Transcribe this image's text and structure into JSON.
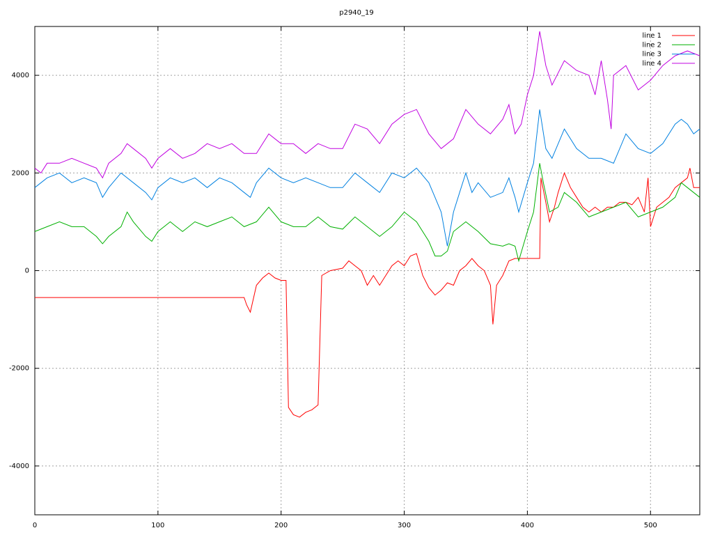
{
  "chart_data": {
    "type": "line",
    "title": "p2940_19",
    "xlim": [
      0,
      540
    ],
    "ylim": [
      -5000,
      5000
    ],
    "xticks": [
      0,
      100,
      200,
      300,
      400,
      500
    ],
    "yticks": [
      -4000,
      -2000,
      0,
      2000,
      4000
    ],
    "grid": true,
    "legend": "upper right",
    "series": [
      {
        "name": "line 1",
        "color": "#ff0000",
        "x": [
          0,
          170,
          172,
          175,
          180,
          185,
          190,
          195,
          200,
          204,
          206,
          210,
          215,
          220,
          225,
          230,
          233,
          240,
          250,
          255,
          260,
          265,
          270,
          275,
          280,
          285,
          290,
          295,
          300,
          305,
          310,
          315,
          320,
          325,
          330,
          335,
          340,
          345,
          350,
          355,
          360,
          365,
          370,
          372,
          375,
          380,
          385,
          390,
          400,
          410,
          411,
          415,
          418,
          422,
          425,
          430,
          435,
          440,
          445,
          450,
          455,
          460,
          465,
          470,
          475,
          480,
          485,
          490,
          495,
          498,
          500,
          505,
          510,
          515,
          520,
          525,
          530,
          532,
          535,
          540
        ],
        "values": [
          -550,
          -550,
          -700,
          -850,
          -300,
          -150,
          -50,
          -150,
          -200,
          -200,
          -2800,
          -2950,
          -3000,
          -2900,
          -2850,
          -2750,
          -100,
          0,
          50,
          200,
          100,
          0,
          -300,
          -100,
          -300,
          -100,
          100,
          200,
          100,
          300,
          350,
          -100,
          -350,
          -500,
          -400,
          -250,
          -300,
          0,
          100,
          250,
          100,
          0,
          -300,
          -1100,
          -300,
          -100,
          200,
          250,
          250,
          250,
          1900,
          1400,
          1000,
          1300,
          1600,
          2000,
          1700,
          1500,
          1300,
          1200,
          1300,
          1200,
          1300,
          1300,
          1400,
          1400,
          1350,
          1500,
          1200,
          1900,
          900,
          1300,
          1400,
          1500,
          1700,
          1800,
          1900,
          2100,
          1700,
          1700
        ]
      },
      {
        "name": "line 2",
        "color": "#00b000",
        "x": [
          0,
          10,
          20,
          30,
          40,
          50,
          55,
          60,
          70,
          75,
          80,
          90,
          95,
          100,
          110,
          120,
          130,
          140,
          150,
          160,
          170,
          180,
          190,
          200,
          210,
          220,
          230,
          240,
          250,
          260,
          270,
          280,
          290,
          300,
          310,
          320,
          325,
          330,
          335,
          340,
          350,
          360,
          370,
          380,
          385,
          390,
          393,
          400,
          405,
          410,
          413,
          418,
          425,
          430,
          440,
          450,
          460,
          470,
          480,
          490,
          500,
          510,
          520,
          525,
          530,
          540
        ],
        "values": [
          800,
          900,
          1000,
          900,
          900,
          700,
          550,
          700,
          900,
          1200,
          1000,
          700,
          600,
          800,
          1000,
          800,
          1000,
          900,
          1000,
          1100,
          900,
          1000,
          1300,
          1000,
          900,
          900,
          1100,
          900,
          850,
          1100,
          900,
          700,
          900,
          1200,
          1000,
          600,
          300,
          300,
          400,
          800,
          1000,
          800,
          550,
          500,
          550,
          500,
          200,
          800,
          1200,
          2200,
          1800,
          1200,
          1300,
          1600,
          1400,
          1100,
          1200,
          1300,
          1400,
          1100,
          1200,
          1300,
          1500,
          1800,
          1700,
          1500
        ]
      },
      {
        "name": "line 3",
        "color": "#0080e0",
        "x": [
          0,
          10,
          20,
          30,
          40,
          50,
          55,
          60,
          70,
          80,
          90,
          95,
          100,
          110,
          120,
          130,
          140,
          150,
          160,
          170,
          175,
          180,
          190,
          200,
          210,
          220,
          230,
          240,
          250,
          260,
          270,
          280,
          290,
          300,
          310,
          320,
          325,
          330,
          335,
          340,
          345,
          350,
          355,
          360,
          370,
          380,
          385,
          390,
          393,
          400,
          405,
          410,
          415,
          420,
          430,
          440,
          450,
          460,
          470,
          480,
          490,
          500,
          510,
          520,
          525,
          530,
          535,
          540
        ],
        "values": [
          1700,
          1900,
          2000,
          1800,
          1900,
          1800,
          1500,
          1700,
          2000,
          1800,
          1600,
          1450,
          1700,
          1900,
          1800,
          1900,
          1700,
          1900,
          1800,
          1600,
          1500,
          1800,
          2100,
          1900,
          1800,
          1900,
          1800,
          1700,
          1700,
          2000,
          1800,
          1600,
          2000,
          1900,
          2100,
          1800,
          1500,
          1200,
          500,
          1200,
          1600,
          2000,
          1600,
          1800,
          1500,
          1600,
          1900,
          1500,
          1200,
          1800,
          2200,
          3300,
          2500,
          2300,
          2900,
          2500,
          2300,
          2300,
          2200,
          2800,
          2500,
          2400,
          2600,
          3000,
          3100,
          3000,
          2800,
          2900
        ]
      },
      {
        "name": "line 4",
        "color": "#c000e0",
        "x": [
          0,
          5,
          10,
          20,
          30,
          40,
          50,
          55,
          60,
          70,
          75,
          80,
          90,
          95,
          100,
          110,
          120,
          130,
          140,
          150,
          160,
          170,
          180,
          190,
          200,
          210,
          220,
          230,
          240,
          250,
          260,
          270,
          280,
          290,
          300,
          310,
          320,
          330,
          340,
          350,
          360,
          370,
          380,
          385,
          390,
          395,
          400,
          405,
          410,
          415,
          420,
          430,
          440,
          450,
          455,
          460,
          465,
          468,
          470,
          480,
          490,
          500,
          510,
          520,
          530,
          540
        ],
        "values": [
          2100,
          2000,
          2200,
          2200,
          2300,
          2200,
          2100,
          1900,
          2200,
          2400,
          2600,
          2500,
          2300,
          2100,
          2300,
          2500,
          2300,
          2400,
          2600,
          2500,
          2600,
          2400,
          2400,
          2800,
          2600,
          2600,
          2400,
          2600,
          2500,
          2500,
          3000,
          2900,
          2600,
          3000,
          3200,
          3300,
          2800,
          2500,
          2700,
          3300,
          3000,
          2800,
          3100,
          3400,
          2800,
          3000,
          3600,
          4000,
          4900,
          4200,
          3800,
          4300,
          4100,
          4000,
          3600,
          4300,
          3500,
          2900,
          4000,
          4200,
          3700,
          3900,
          4200,
          4400,
          4500,
          4400
        ]
      }
    ]
  }
}
